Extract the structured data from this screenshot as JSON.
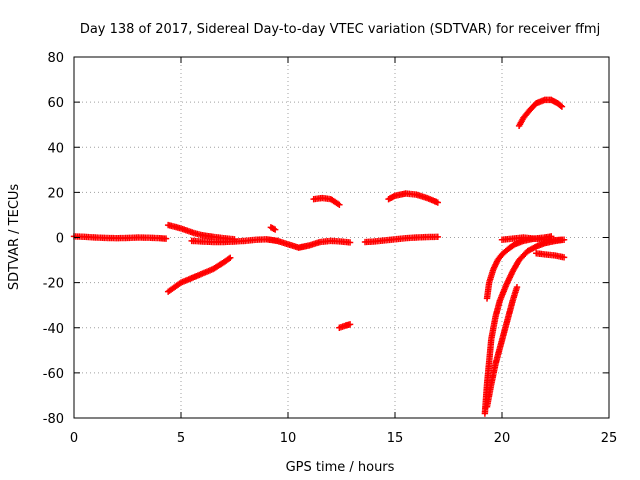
{
  "chart_data": {
    "type": "scatter",
    "title": "Day 138 of 2017, Sidereal Day-to-day VTEC variation (SDTVAR) for receiver ffmj",
    "xlabel": "GPS time / hours",
    "ylabel": "SDTVAR / TECUs",
    "xlim": [
      0,
      25
    ],
    "ylim": [
      -80,
      80
    ],
    "xticks": [
      0,
      5,
      10,
      15,
      20,
      25
    ],
    "yticks": [
      -80,
      -60,
      -40,
      -20,
      0,
      20,
      40,
      60,
      80
    ],
    "xtick_labels": [
      "0",
      "5",
      "10",
      "15",
      "20",
      "25"
    ],
    "ytick_labels": [
      "-80",
      "-60",
      "-40",
      "-20",
      "0",
      "20",
      "40",
      "60",
      "80"
    ],
    "grid": true,
    "marker": "plus",
    "point_color": "#ff0000",
    "series": [
      {
        "segments": [
          {
            "x": [
              0.0,
              0.5,
              1.0,
              1.5,
              2.0,
              2.5,
              3.0,
              3.5,
              4.0,
              4.3
            ],
            "y": [
              0.5,
              0.3,
              0.0,
              -0.2,
              -0.3,
              -0.2,
              0.0,
              -0.1,
              -0.3,
              -0.5
            ]
          },
          {
            "x": [
              4.4,
              4.7,
              5.0,
              5.3,
              5.6,
              6.0,
              6.5,
              7.0,
              7.5
            ],
            "y": [
              5.5,
              4.8,
              4.0,
              3.0,
              2.0,
              1.0,
              0.3,
              -0.3,
              -0.8
            ]
          },
          {
            "x": [
              4.4,
              5.0,
              5.5,
              6.0,
              6.5,
              7.0,
              7.3
            ],
            "y": [
              -24,
              -20,
              -18,
              -16,
              -14,
              -11,
              -9
            ]
          },
          {
            "x": [
              5.5,
              6.0,
              6.5,
              7.0,
              7.5,
              8.0,
              8.5,
              9.0,
              9.5,
              10.0,
              10.5,
              11.0,
              11.5,
              12.0,
              12.5,
              12.9
            ],
            "y": [
              -1.5,
              -1.8,
              -2.0,
              -2.0,
              -1.8,
              -1.5,
              -1.0,
              -0.8,
              -1.5,
              -3.0,
              -4.5,
              -3.5,
              -2.0,
              -1.5,
              -1.8,
              -2.2
            ]
          },
          {
            "x": [
              9.2,
              9.4
            ],
            "y": [
              4.5,
              3.5
            ]
          },
          {
            "x": [
              11.2,
              11.6,
              12.0,
              12.4
            ],
            "y": [
              17.0,
              17.5,
              17.0,
              14.5
            ]
          },
          {
            "x": [
              12.4,
              12.7,
              12.9
            ],
            "y": [
              -40.0,
              -39.0,
              -38.5
            ]
          },
          {
            "x": [
              13.6,
              14.0,
              14.5,
              15.0,
              15.5,
              16.0,
              16.5,
              17.0
            ],
            "y": [
              -2.0,
              -1.8,
              -1.3,
              -0.8,
              -0.3,
              0.0,
              0.2,
              0.3
            ]
          },
          {
            "x": [
              14.7,
              15.0,
              15.5,
              16.0,
              16.5,
              17.0
            ],
            "y": [
              17.0,
              18.5,
              19.5,
              19.0,
              17.5,
              15.5
            ]
          },
          {
            "x": [
              19.3,
              19.4,
              19.6,
              19.8,
              20.0,
              20.3,
              20.6,
              21.0,
              21.5,
              22.0,
              22.3
            ],
            "y": [
              -27.0,
              -20.0,
              -14.0,
              -10.0,
              -7.5,
              -5.0,
              -3.0,
              -1.5,
              -0.5,
              0.0,
              0.5
            ]
          },
          {
            "x": [
              19.2,
              19.3,
              19.4,
              19.5,
              19.7,
              19.9,
              20.2,
              20.5,
              20.8,
              21.2,
              21.6,
              22.0,
              22.5,
              22.9
            ],
            "y": [
              -78.0,
              -65.0,
              -55.0,
              -45.0,
              -35.0,
              -28.0,
              -21.0,
              -15.0,
              -10.0,
              -6.0,
              -4.0,
              -2.5,
              -1.5,
              -1.0
            ]
          },
          {
            "x": [
              19.3,
              19.5,
              19.7,
              19.9,
              20.1,
              20.3,
              20.5,
              20.7
            ],
            "y": [
              -75.0,
              -65.0,
              -56.0,
              -49.0,
              -42.0,
              -35.0,
              -28.0,
              -22.0
            ]
          },
          {
            "x": [
              20.0,
              20.5,
              21.0,
              21.5,
              22.0,
              22.5,
              22.8
            ],
            "y": [
              -1.0,
              -0.5,
              0.0,
              -0.5,
              -1.0,
              -1.2,
              -1.0
            ]
          },
          {
            "x": [
              20.8,
              21.0,
              21.3,
              21.6,
              22.0,
              22.3,
              22.6,
              22.8
            ],
            "y": [
              49.5,
              53.0,
              56.5,
              59.5,
              61.0,
              61.0,
              59.5,
              58.0
            ]
          },
          {
            "x": [
              21.6,
              22.0,
              22.5,
              22.9
            ],
            "y": [
              -7.0,
              -7.5,
              -8.0,
              -8.8
            ]
          }
        ]
      }
    ]
  }
}
